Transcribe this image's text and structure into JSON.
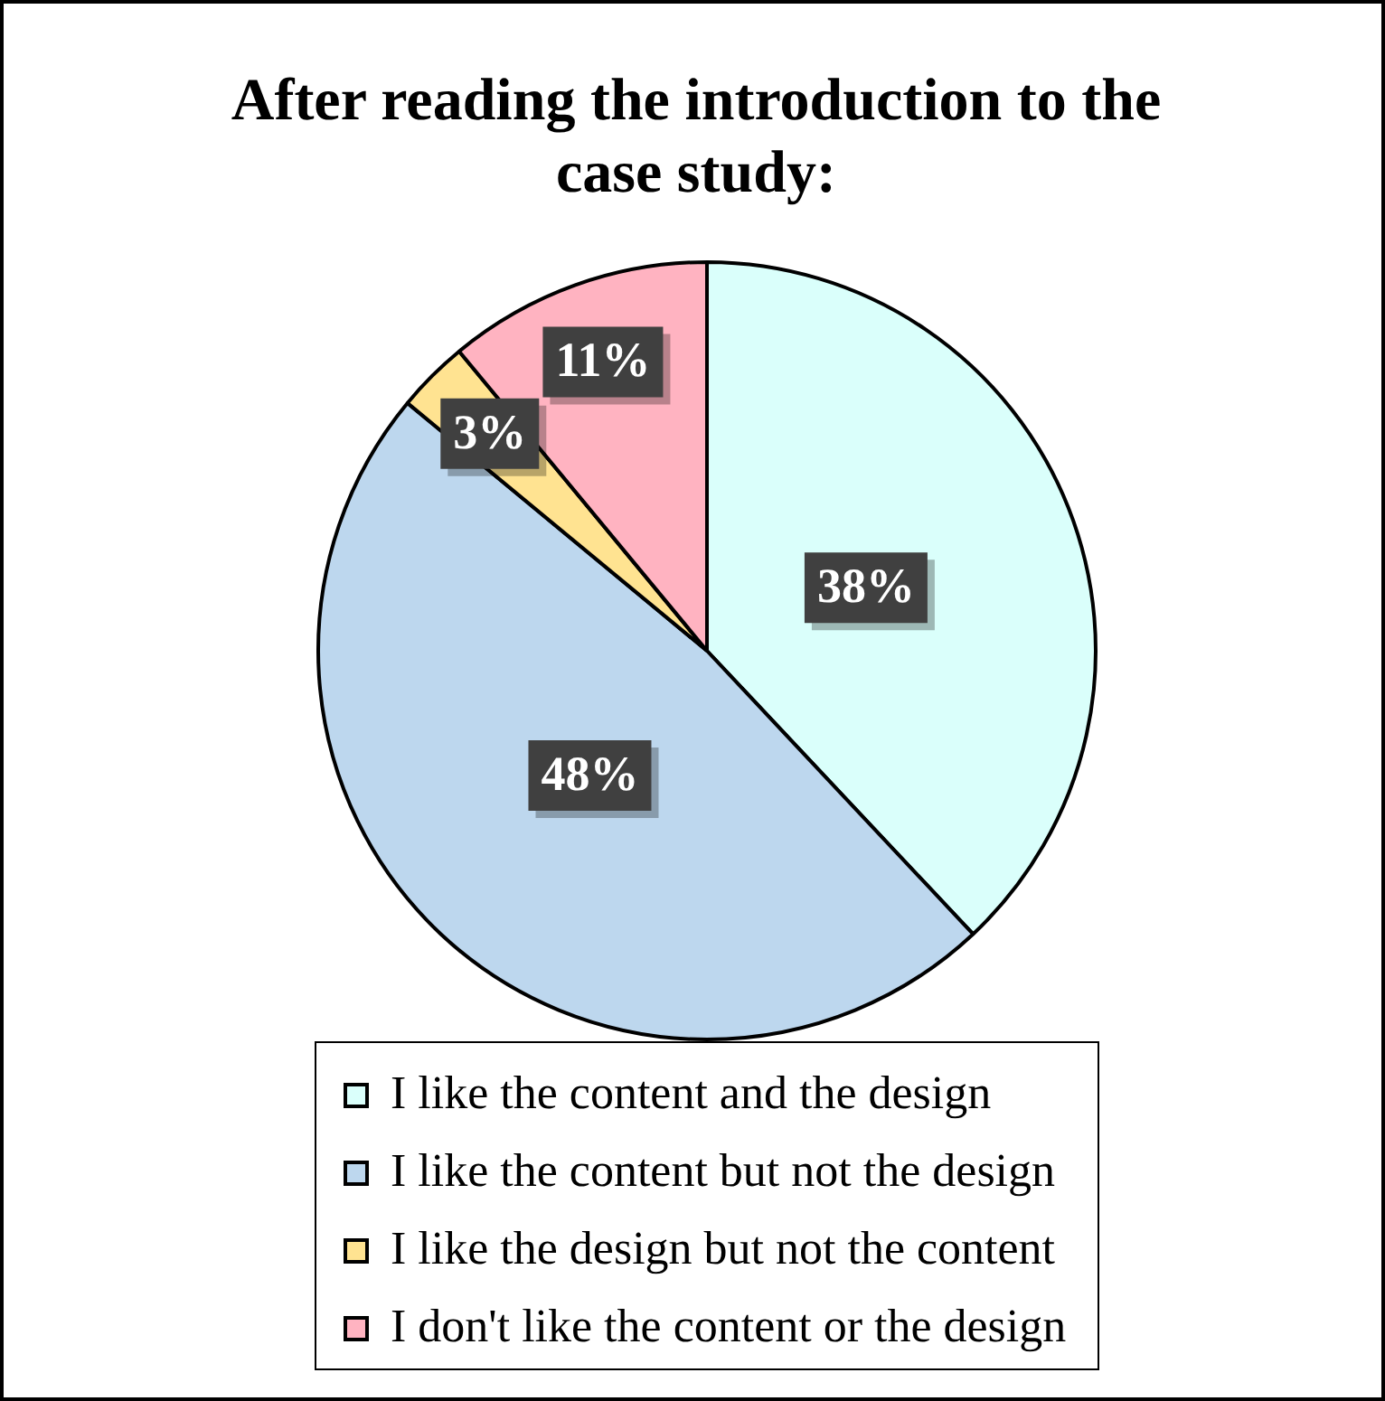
{
  "chart_data": {
    "type": "pie",
    "title": "After reading the introduction to the case study:",
    "categories": [
      "I like the content and the design",
      "I like the content but not the design",
      "I like the design but not the content",
      "I don't like the content or the design"
    ],
    "values": [
      38,
      48,
      3,
      11
    ],
    "colors": [
      "#dafffb",
      "#bdd7ee",
      "#ffe391",
      "#ffb3c1"
    ],
    "value_labels": [
      "38%",
      "48%",
      "3%",
      "11%"
    ],
    "legend": "bottom"
  }
}
